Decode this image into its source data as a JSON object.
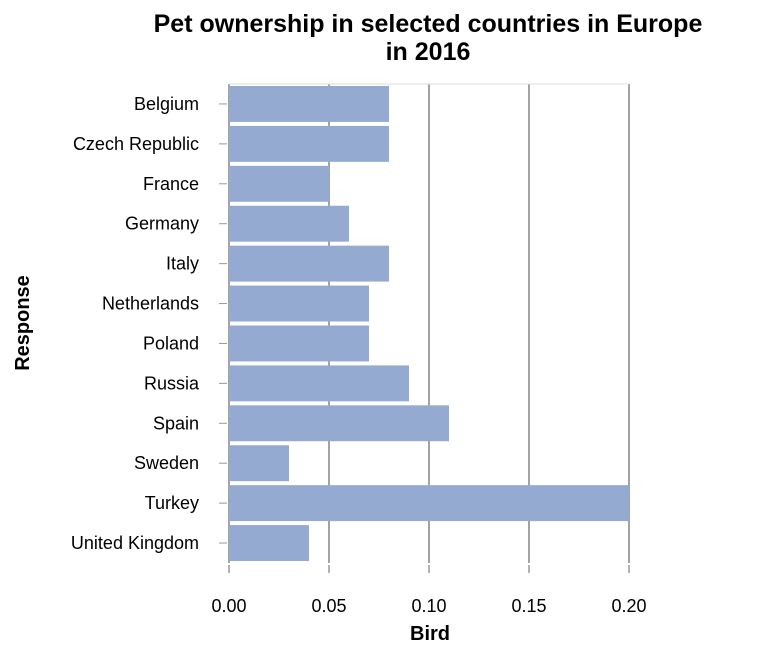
{
  "chart_data": {
    "type": "bar",
    "orientation": "horizontal",
    "title": [
      "Pet ownership in selected countries in Europe",
      "in 2016"
    ],
    "xlabel": "Bird",
    "ylabel": "Response",
    "categories": [
      "Belgium",
      "Czech Republic",
      "France",
      "Germany",
      "Italy",
      "Netherlands",
      "Poland",
      "Russia",
      "Spain",
      "Sweden",
      "Turkey",
      "United Kingdom"
    ],
    "values": [
      0.08,
      0.08,
      0.05,
      0.06,
      0.08,
      0.07,
      0.07,
      0.09,
      0.11,
      0.03,
      0.2,
      0.04
    ],
    "xlim": [
      0,
      0.2
    ],
    "xticks": [
      "0.00",
      "0.05",
      "0.10",
      "0.15",
      "0.20"
    ],
    "grid": "vertical",
    "bar_color": "#94aad0"
  }
}
